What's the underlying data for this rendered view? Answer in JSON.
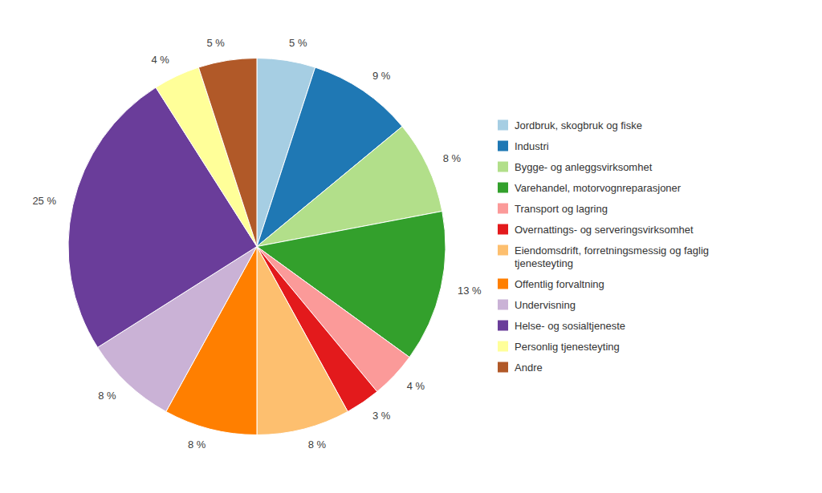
{
  "chart_data": {
    "type": "pie",
    "categories": [
      "Jordbruk, skogbruk og fiske",
      "Industri",
      "Bygge- og anleggsvirksomhet",
      "Varehandel, motorvognreparasjoner",
      "Transport og lagring",
      "Overnattings- og serveringsvirksomhet",
      "Eiendomsdrift, forretningsmessig og faglig\ntjenesteyting",
      "Offentlig forvaltning",
      "Undervisning",
      "Helse- og sosialtjeneste",
      "Personlig tjenesteyting",
      "Andre"
    ],
    "values": [
      5,
      9,
      8,
      13,
      4,
      3,
      8,
      8,
      8,
      25,
      4,
      5
    ],
    "value_labels": [
      "5 %",
      "9 %",
      "8 %",
      "13 %",
      "4 %",
      "3 %",
      "8 %",
      "8 %",
      "8 %",
      "25 %",
      "4 %",
      "5 %"
    ],
    "data_labels": true,
    "legend": "right"
  }
}
